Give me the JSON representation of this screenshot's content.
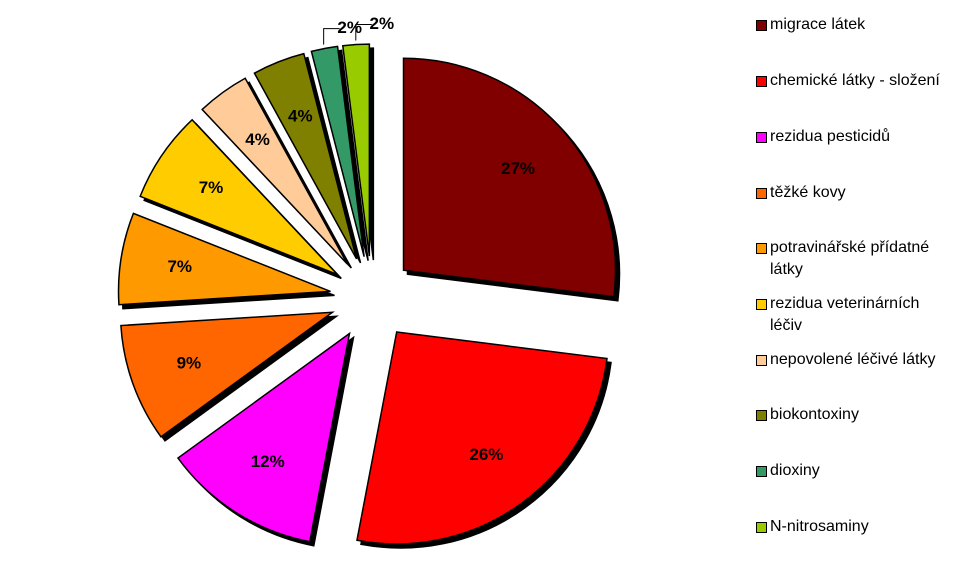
{
  "chart_data": {
    "type": "pie",
    "categories": [
      "migrace látek",
      "chemické látky - složení",
      "rezidua pesticidů",
      "těžké kovy",
      "potravinářské přídatné látky",
      "rezidua veterinárních léčiv",
      "nepovolené léčivé látky",
      "biokontoxiny",
      "dioxiny",
      "N-nitrosaminy"
    ],
    "values": [
      27,
      26,
      12,
      9,
      7,
      7,
      4,
      4,
      2,
      2
    ],
    "value_labels": [
      "27%",
      "26%",
      "12%",
      "9%",
      "7%",
      "7%",
      "4%",
      "4%",
      "2%",
      "2%"
    ],
    "colors": [
      "#800000",
      "#ff0000",
      "#ff00ff",
      "#ff6600",
      "#ff9900",
      "#ffcc00",
      "#ffcc99",
      "#808000",
      "#339966",
      "#99cc00"
    ],
    "legend_position": "right"
  }
}
